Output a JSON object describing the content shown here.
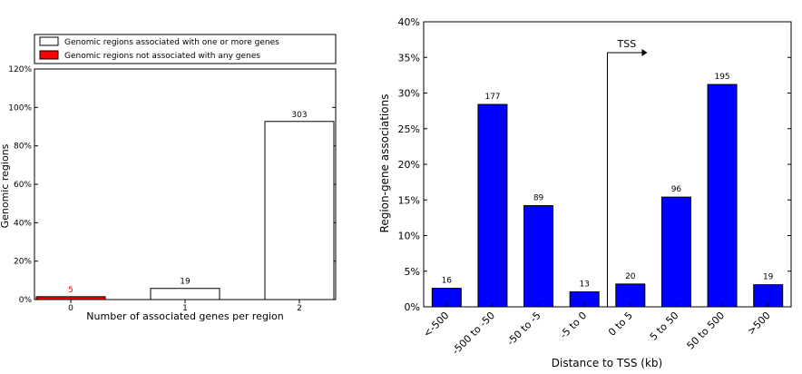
{
  "chart_data": [
    {
      "type": "bar",
      "xlabel": "Number of associated genes per region",
      "ylabel": "Genomic regions",
      "ylim": [
        0,
        120
      ],
      "yticks": [
        "0%",
        "20%",
        "40%",
        "60%",
        "80%",
        "100%",
        "120%"
      ],
      "categories": [
        "0",
        "1",
        "2"
      ],
      "legend": {
        "placement": "top",
        "entries": [
          {
            "label": "Genomic regions associated with one or more genes",
            "color": "#ffffff"
          },
          {
            "label": "Genomic regions not associated with any genes",
            "color": "#ff0000"
          }
        ]
      },
      "bars": [
        {
          "category": "0",
          "percent": 1.5,
          "label": "5",
          "color": "#ff0000",
          "label_color": "#ff0000"
        },
        {
          "category": "1",
          "percent": 5.8,
          "label": "19",
          "color": "#ffffff",
          "label_color": "#000000"
        },
        {
          "category": "2",
          "percent": 92.7,
          "label": "303",
          "color": "#ffffff",
          "label_color": "#000000"
        }
      ]
    },
    {
      "type": "bar",
      "xlabel": "Distance to TSS (kb)",
      "ylabel": "Region-gene associations",
      "ylim": [
        0,
        40
      ],
      "yticks": [
        "0%",
        "5%",
        "10%",
        "15%",
        "20%",
        "25%",
        "30%",
        "35%",
        "40%"
      ],
      "categories": [
        "<-500",
        "-500 to -50",
        "-50 to -5",
        "-5 to 0",
        "0 to 5",
        "5 to 50",
        "50 to 500",
        ">500"
      ],
      "values": [
        2.6,
        28.4,
        14.2,
        2.1,
        3.2,
        15.4,
        31.2,
        3.1
      ],
      "data_labels": [
        "16",
        "177",
        "89",
        "13",
        "20",
        "96",
        "195",
        "19"
      ],
      "color": "#0000ff",
      "annotation": {
        "text": "TSS",
        "between": [
          "-5 to 0",
          "0 to 5"
        ]
      }
    }
  ]
}
